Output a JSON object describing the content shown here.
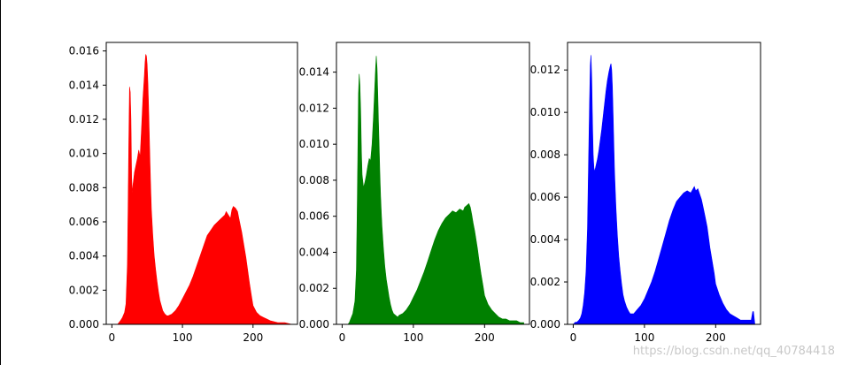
{
  "watermark": "https://blog.csdn.net/qq_40784418",
  "chart_data": [
    {
      "type": "area",
      "color": "#ff0000",
      "xlim": [
        -8,
        263
      ],
      "ylim": [
        0,
        0.0165
      ],
      "xticks": [
        0,
        100,
        200
      ],
      "yticks": [
        0.0,
        0.002,
        0.004,
        0.006,
        0.008,
        0.01,
        0.012,
        0.014,
        0.016
      ],
      "ytick_labels": [
        "0.000",
        "0.002",
        "0.004",
        "0.006",
        "0.008",
        "0.010",
        "0.012",
        "0.014",
        "0.016"
      ],
      "x": [
        0,
        5,
        8,
        10,
        12,
        15,
        18,
        20,
        22,
        23,
        24,
        25,
        26,
        27,
        28,
        29,
        30,
        32,
        34,
        36,
        38,
        40,
        42,
        44,
        46,
        47,
        48,
        49,
        50,
        51,
        52,
        53,
        54,
        55,
        56,
        58,
        60,
        62,
        64,
        66,
        68,
        70,
        72,
        75,
        78,
        80,
        85,
        90,
        95,
        100,
        105,
        110,
        115,
        120,
        125,
        130,
        135,
        140,
        145,
        150,
        155,
        160,
        162,
        165,
        168,
        170,
        172,
        175,
        178,
        180,
        182,
        184,
        186,
        188,
        190,
        192,
        195,
        198,
        200,
        205,
        210,
        215,
        220,
        225,
        230,
        235,
        240,
        245,
        250,
        255
      ],
      "y": [
        0,
        0,
        0,
        0.0001,
        0.0002,
        0.0004,
        0.0007,
        0.0012,
        0.0035,
        0.007,
        0.0108,
        0.0139,
        0.0136,
        0.012,
        0.0085,
        0.0077,
        0.0082,
        0.0089,
        0.0093,
        0.0097,
        0.0102,
        0.0098,
        0.0115,
        0.0132,
        0.0145,
        0.0153,
        0.0158,
        0.0157,
        0.0152,
        0.0142,
        0.0128,
        0.0112,
        0.0095,
        0.008,
        0.0067,
        0.0052,
        0.004,
        0.0032,
        0.0025,
        0.0019,
        0.0014,
        0.0011,
        0.0008,
        0.0006,
        0.0005,
        0.0005,
        0.0006,
        0.0008,
        0.0011,
        0.0015,
        0.0019,
        0.0023,
        0.0028,
        0.0034,
        0.004,
        0.0046,
        0.0052,
        0.0055,
        0.0058,
        0.006,
        0.0062,
        0.0064,
        0.0066,
        0.0064,
        0.0062,
        0.0067,
        0.0069,
        0.0068,
        0.0066,
        0.0062,
        0.0058,
        0.0054,
        0.0049,
        0.0044,
        0.0039,
        0.0033,
        0.0024,
        0.0016,
        0.0011,
        0.0007,
        0.0005,
        0.0004,
        0.0003,
        0.0002,
        0.00015,
        0.0001,
        0.0001,
        0.0001,
        5e-05,
        0
      ]
    },
    {
      "type": "area",
      "color": "#008000",
      "xlim": [
        -8,
        263
      ],
      "ylim": [
        0,
        0.01565
      ],
      "xticks": [
        0,
        100,
        200
      ],
      "yticks": [
        0.0,
        0.002,
        0.004,
        0.006,
        0.008,
        0.01,
        0.012,
        0.014
      ],
      "ytick_labels": [
        "0.000",
        "0.002",
        "0.004",
        "0.006",
        "0.008",
        "0.010",
        "0.012",
        "0.014"
      ],
      "x": [
        0,
        5,
        8,
        10,
        12,
        15,
        18,
        20,
        21,
        22,
        23,
        24,
        25,
        26,
        27,
        28,
        30,
        32,
        34,
        36,
        38,
        40,
        42,
        44,
        46,
        47,
        48,
        49,
        50,
        51,
        52,
        53,
        54,
        55,
        56,
        58,
        60,
        62,
        64,
        66,
        68,
        70,
        72,
        75,
        78,
        80,
        85,
        90,
        95,
        100,
        105,
        110,
        115,
        120,
        125,
        130,
        135,
        140,
        145,
        150,
        155,
        160,
        165,
        170,
        172,
        175,
        178,
        180,
        182,
        184,
        186,
        188,
        190,
        192,
        195,
        198,
        200,
        205,
        210,
        215,
        220,
        225,
        230,
        235,
        240,
        245,
        250,
        255
      ],
      "y": [
        0,
        0,
        0,
        0.0001,
        0.0003,
        0.0006,
        0.0013,
        0.003,
        0.0058,
        0.0092,
        0.0128,
        0.0139,
        0.0133,
        0.0118,
        0.0096,
        0.0083,
        0.0076,
        0.0079,
        0.0083,
        0.0088,
        0.0092,
        0.0091,
        0.01,
        0.0115,
        0.0133,
        0.0142,
        0.0149,
        0.0142,
        0.0128,
        0.0112,
        0.0098,
        0.0083,
        0.0071,
        0.0062,
        0.0054,
        0.0042,
        0.0032,
        0.0025,
        0.002,
        0.0015,
        0.0011,
        0.0008,
        0.0006,
        0.0005,
        0.0004,
        0.0005,
        0.0006,
        0.0008,
        0.0011,
        0.0015,
        0.0019,
        0.0024,
        0.0029,
        0.0035,
        0.0041,
        0.0047,
        0.0052,
        0.0056,
        0.0059,
        0.0061,
        0.0063,
        0.0062,
        0.0064,
        0.0063,
        0.0065,
        0.0066,
        0.0067,
        0.0065,
        0.0061,
        0.0056,
        0.0052,
        0.0047,
        0.0042,
        0.0036,
        0.0028,
        0.0021,
        0.0016,
        0.0011,
        0.0008,
        0.0006,
        0.0004,
        0.0003,
        0.0003,
        0.0002,
        0.0002,
        0.0002,
        0.0001,
        0.0001
      ]
    },
    {
      "type": "area",
      "color": "#0000ff",
      "xlim": [
        -8,
        263
      ],
      "ylim": [
        0,
        0.0133
      ],
      "xticks": [
        0,
        100,
        200
      ],
      "yticks": [
        0.0,
        0.002,
        0.004,
        0.006,
        0.008,
        0.01,
        0.012
      ],
      "ytick_labels": [
        "0.000",
        "0.002",
        "0.004",
        "0.006",
        "0.008",
        "0.010",
        "0.012"
      ],
      "x": [
        0,
        3,
        5,
        8,
        10,
        12,
        14,
        16,
        18,
        20,
        21,
        22,
        23,
        24,
        25,
        26,
        27,
        28,
        29,
        30,
        32,
        34,
        36,
        38,
        40,
        42,
        44,
        46,
        48,
        50,
        52,
        53,
        54,
        55,
        56,
        57,
        58,
        60,
        62,
        64,
        66,
        68,
        70,
        72,
        75,
        78,
        80,
        85,
        90,
        95,
        100,
        105,
        110,
        115,
        120,
        125,
        130,
        135,
        140,
        145,
        150,
        155,
        160,
        165,
        170,
        172,
        175,
        178,
        180,
        182,
        185,
        188,
        190,
        192,
        195,
        198,
        200,
        205,
        210,
        215,
        220,
        225,
        230,
        235,
        240,
        245,
        250,
        251,
        252,
        253,
        254,
        255
      ],
      "y": [
        0,
        0.0001,
        0.0001,
        0.0002,
        0.0003,
        0.0005,
        0.0009,
        0.0015,
        0.0025,
        0.0045,
        0.0065,
        0.0085,
        0.0105,
        0.0122,
        0.0127,
        0.0115,
        0.0095,
        0.008,
        0.0074,
        0.0072,
        0.0075,
        0.0078,
        0.0082,
        0.0087,
        0.0092,
        0.0098,
        0.0104,
        0.011,
        0.0115,
        0.0119,
        0.0122,
        0.0123,
        0.012,
        0.0112,
        0.0099,
        0.0085,
        0.0072,
        0.0055,
        0.0042,
        0.0032,
        0.0025,
        0.0019,
        0.0014,
        0.0011,
        0.0008,
        0.0006,
        0.0005,
        0.0005,
        0.0007,
        0.0009,
        0.0012,
        0.0016,
        0.002,
        0.0025,
        0.0031,
        0.0037,
        0.0043,
        0.0049,
        0.0054,
        0.0058,
        0.006,
        0.0062,
        0.0063,
        0.0062,
        0.0065,
        0.0063,
        0.0064,
        0.0061,
        0.0059,
        0.0056,
        0.0051,
        0.0046,
        0.0041,
        0.0036,
        0.003,
        0.0024,
        0.0019,
        0.0014,
        0.001,
        0.0007,
        0.0005,
        0.0004,
        0.0003,
        0.0002,
        0.0002,
        0.0002,
        0.0002,
        0.0004,
        0.0006,
        0.0006,
        0.0003,
        0
      ]
    }
  ]
}
